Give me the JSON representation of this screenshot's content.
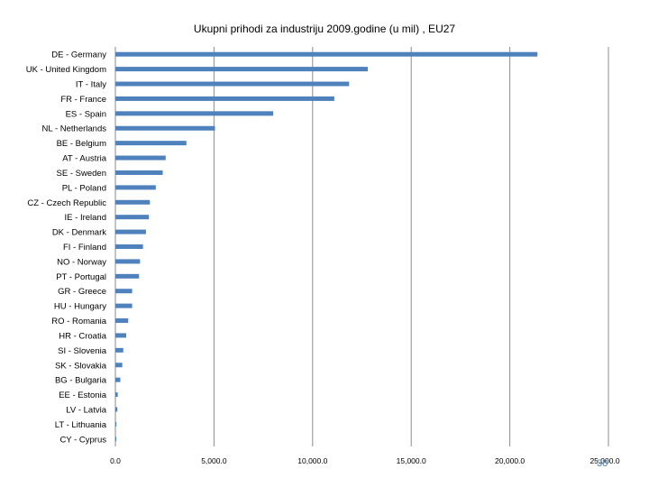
{
  "page_number": "38",
  "chart_data": {
    "type": "bar",
    "orientation": "horizontal",
    "title": "Ukupni prihodi za industriju  2009.godine  (u mil) , EU27",
    "xlabel": "",
    "ylabel": "",
    "xlim": [
      0,
      25000
    ],
    "x_ticks": [
      0,
      5000,
      10000,
      15000,
      20000,
      25000
    ],
    "x_tick_labels": [
      "0.0",
      "5,000.0",
      "10,000.0",
      "15,000.0",
      "20,000.0",
      "25,000.0"
    ],
    "grid": "vertical major gridlines",
    "bar_color": "#4f81bd",
    "categories": [
      "DE - Germany",
      "UK - United Kingdom",
      "IT - Italy",
      "FR - France",
      "ES - Spain",
      "NL - Netherlands",
      "BE - Belgium",
      "AT - Austria",
      "SE - Sweden",
      "PL - Poland",
      "CZ - Czech Republic",
      "IE - Ireland",
      "DK - Denmark",
      "FI - Finland",
      "NO - Norway",
      "PT - Portugal",
      "GR - Greece",
      "HU - Hungary",
      "RO - Romania",
      "HR - Croatia",
      "SI - Slovenia",
      "SK - Slovakia",
      "BG - Bulgaria",
      "EE - Estonia",
      "LV - Latvia",
      "LT - Lithuania",
      "CY - Cyprus"
    ],
    "values": [
      21400,
      12800,
      11850,
      11100,
      8000,
      5050,
      3600,
      2550,
      2400,
      2050,
      1750,
      1700,
      1550,
      1400,
      1250,
      1200,
      850,
      850,
      650,
      550,
      400,
      350,
      250,
      120,
      100,
      50,
      40
    ]
  }
}
